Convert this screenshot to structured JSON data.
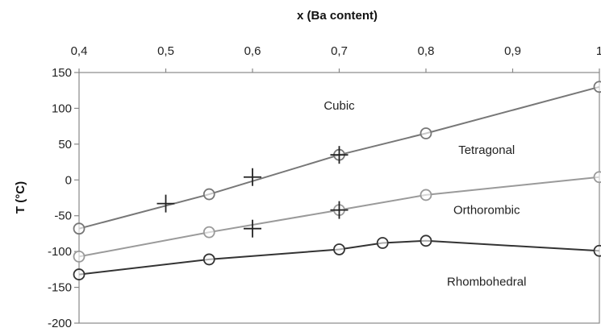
{
  "chart_data": {
    "type": "line",
    "xlabel": "x (Ba content)",
    "ylabel": "T (°C)",
    "xlim": [
      0.4,
      1.0
    ],
    "ylim": [
      -200,
      150
    ],
    "x_ticks": [
      0.4,
      0.5,
      0.6,
      0.7,
      0.8,
      0.9,
      1.0
    ],
    "x_tick_labels": [
      "0,4",
      "0,5",
      "0,6",
      "0,7",
      "0,8",
      "0,9",
      "1"
    ],
    "y_ticks": [
      150,
      100,
      50,
      0,
      -50,
      -100,
      -150,
      -200
    ],
    "y_tick_labels": [
      "150",
      "100",
      "50",
      "0",
      "-50",
      "-100",
      "-150",
      "-200"
    ],
    "x_axis_position": "top",
    "grid": false,
    "series": [
      {
        "color": "#777777",
        "marker": "circle",
        "points": [
          [
            0.4,
            -68
          ],
          [
            0.55,
            -20
          ],
          [
            0.7,
            35
          ],
          [
            0.8,
            65
          ],
          [
            1.0,
            130
          ]
        ]
      },
      {
        "color": "#9a9a9a",
        "marker": "circle",
        "points": [
          [
            0.4,
            -107
          ],
          [
            0.55,
            -73
          ],
          [
            0.7,
            -42
          ],
          [
            0.8,
            -21
          ],
          [
            1.0,
            4
          ]
        ]
      },
      {
        "color": "#333333",
        "marker": "circle",
        "points": [
          [
            0.4,
            -132
          ],
          [
            0.55,
            -111
          ],
          [
            0.7,
            -97
          ],
          [
            0.75,
            -88
          ],
          [
            0.8,
            -85
          ],
          [
            1.0,
            -99
          ]
        ]
      }
    ],
    "cross_markers": [
      [
        0.5,
        -33
      ],
      [
        0.6,
        4
      ],
      [
        0.7,
        35
      ],
      [
        0.6,
        -68
      ],
      [
        0.7,
        -42
      ]
    ],
    "annotations": [
      {
        "text": "Cubic",
        "x": 0.7,
        "y": 104
      },
      {
        "text": "Tetragonal",
        "x": 0.87,
        "y": 42
      },
      {
        "text": "Orthorombic",
        "x": 0.87,
        "y": -42
      },
      {
        "text": "Rhombohedral",
        "x": 0.87,
        "y": -142
      }
    ]
  }
}
